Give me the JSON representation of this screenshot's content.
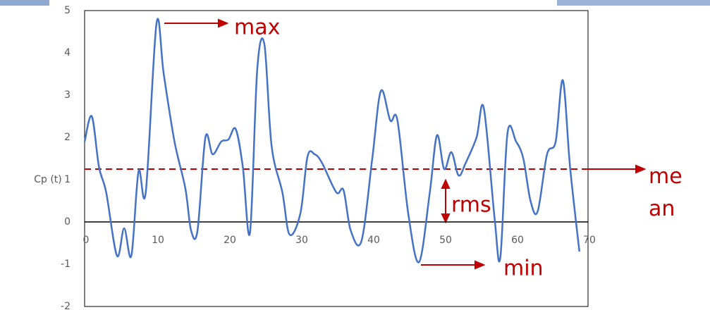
{
  "chart_data": {
    "type": "line",
    "ylabel": "Cp (t)",
    "x": [
      0,
      1,
      2,
      3,
      4.5,
      5.5,
      6.5,
      7.5,
      8.5,
      10,
      11,
      12.5,
      14,
      14.8,
      15.7,
      16.8,
      17.8,
      19,
      20,
      21,
      22,
      23,
      24,
      25,
      26,
      27.5,
      28.5,
      30,
      31,
      32,
      33,
      35,
      36,
      37,
      38.5,
      40,
      41.2,
      42.5,
      43.5,
      45,
      46.5,
      48,
      49,
      50,
      51,
      52,
      53,
      54.5,
      55.5,
      57,
      57.8,
      58.8,
      60,
      61,
      62,
      63,
      64.3,
      65.5,
      66.5,
      67.5,
      68.8
    ],
    "series": [
      {
        "color": "#4472c4",
        "values": [
          1.9,
          2.5,
          1.3,
          0.7,
          -0.8,
          -0.15,
          -0.8,
          1.2,
          0.7,
          4.7,
          3.5,
          1.9,
          0.8,
          -0.2,
          -0.2,
          2.0,
          1.6,
          1.9,
          1.95,
          2.2,
          1.3,
          -0.25,
          3.6,
          4.2,
          1.8,
          0.7,
          -0.3,
          0.2,
          1.55,
          1.6,
          1.4,
          0.7,
          0.75,
          -0.2,
          -0.45,
          1.5,
          3.1,
          2.4,
          2.4,
          0.2,
          -0.95,
          0.7,
          2.05,
          1.25,
          1.65,
          1.1,
          1.4,
          2.0,
          2.7,
          0.1,
          -0.85,
          2.1,
          1.9,
          1.5,
          0.5,
          0.25,
          1.6,
          1.9,
          3.35,
          1.3,
          -0.7
        ]
      }
    ],
    "mean_line": 1.25,
    "mean_color": "#c00000",
    "xlim": [
      0,
      70
    ],
    "xticks": [
      0,
      10,
      20,
      30,
      40,
      50,
      60,
      70
    ],
    "ylim": [
      -2,
      5
    ],
    "yticks": [
      -2,
      -1,
      0,
      1,
      2,
      3,
      4,
      5
    ],
    "annotations": {
      "max": "max",
      "min": "min",
      "mean": "mean",
      "rms": "rms"
    }
  }
}
